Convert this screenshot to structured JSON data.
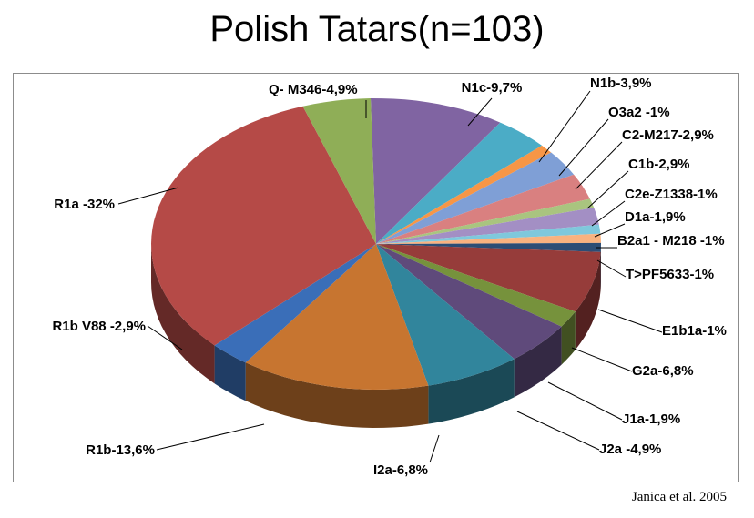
{
  "chart_data": {
    "type": "pie",
    "title": "Polish Tatars(n=103)",
    "slices": [
      {
        "label": "N1c-9,7%",
        "value": 9.7,
        "color": "#8064a2"
      },
      {
        "label": "N1b-3,9%",
        "value": 3.9,
        "color": "#4bacc6"
      },
      {
        "label": "O3a2 -1%",
        "value": 1.0,
        "color": "#f79646"
      },
      {
        "label": "C2-M217-2,9%",
        "value": 2.9,
        "color": "#7f9fd6"
      },
      {
        "label": "C1b-2,9%",
        "value": 2.9,
        "color": "#d98080"
      },
      {
        "label": "C2e-Z1338-1%",
        "value": 1.0,
        "color": "#a9c47f"
      },
      {
        "label": "D1a-1,9%",
        "value": 1.9,
        "color": "#a38fc4"
      },
      {
        "label": "B2a1 - M218 -1%",
        "value": 1.0,
        "color": "#7fc8dc"
      },
      {
        "label": "T>PF5633-1%",
        "value": 1.0,
        "color": "#f9b27f"
      },
      {
        "label": "E1b1a-1%",
        "value": 1.0,
        "color": "#2c4d75"
      },
      {
        "label": "G2a-6,8%",
        "value": 6.8,
        "color": "#963c3a"
      },
      {
        "label": "J1a-1,9%",
        "value": 1.9,
        "color": "#76923c"
      },
      {
        "label": "J2a -4,9%",
        "value": 4.9,
        "color": "#5f4a7b"
      },
      {
        "label": "I2a-6,8%",
        "value": 6.8,
        "color": "#31859c"
      },
      {
        "label": "R1b-13,6%",
        "value": 13.6,
        "color": "#c77530"
      },
      {
        "label": "R1b V88 -2,9%",
        "value": 2.9,
        "color": "#3a6eb8"
      },
      {
        "label": "R1a -32%",
        "value": 32.0,
        "color": "#b54a47"
      },
      {
        "label": "Q- M346-4,9%",
        "value": 4.9,
        "color": "#8fae57"
      }
    ]
  },
  "source_note": "Janica et al. 2005"
}
